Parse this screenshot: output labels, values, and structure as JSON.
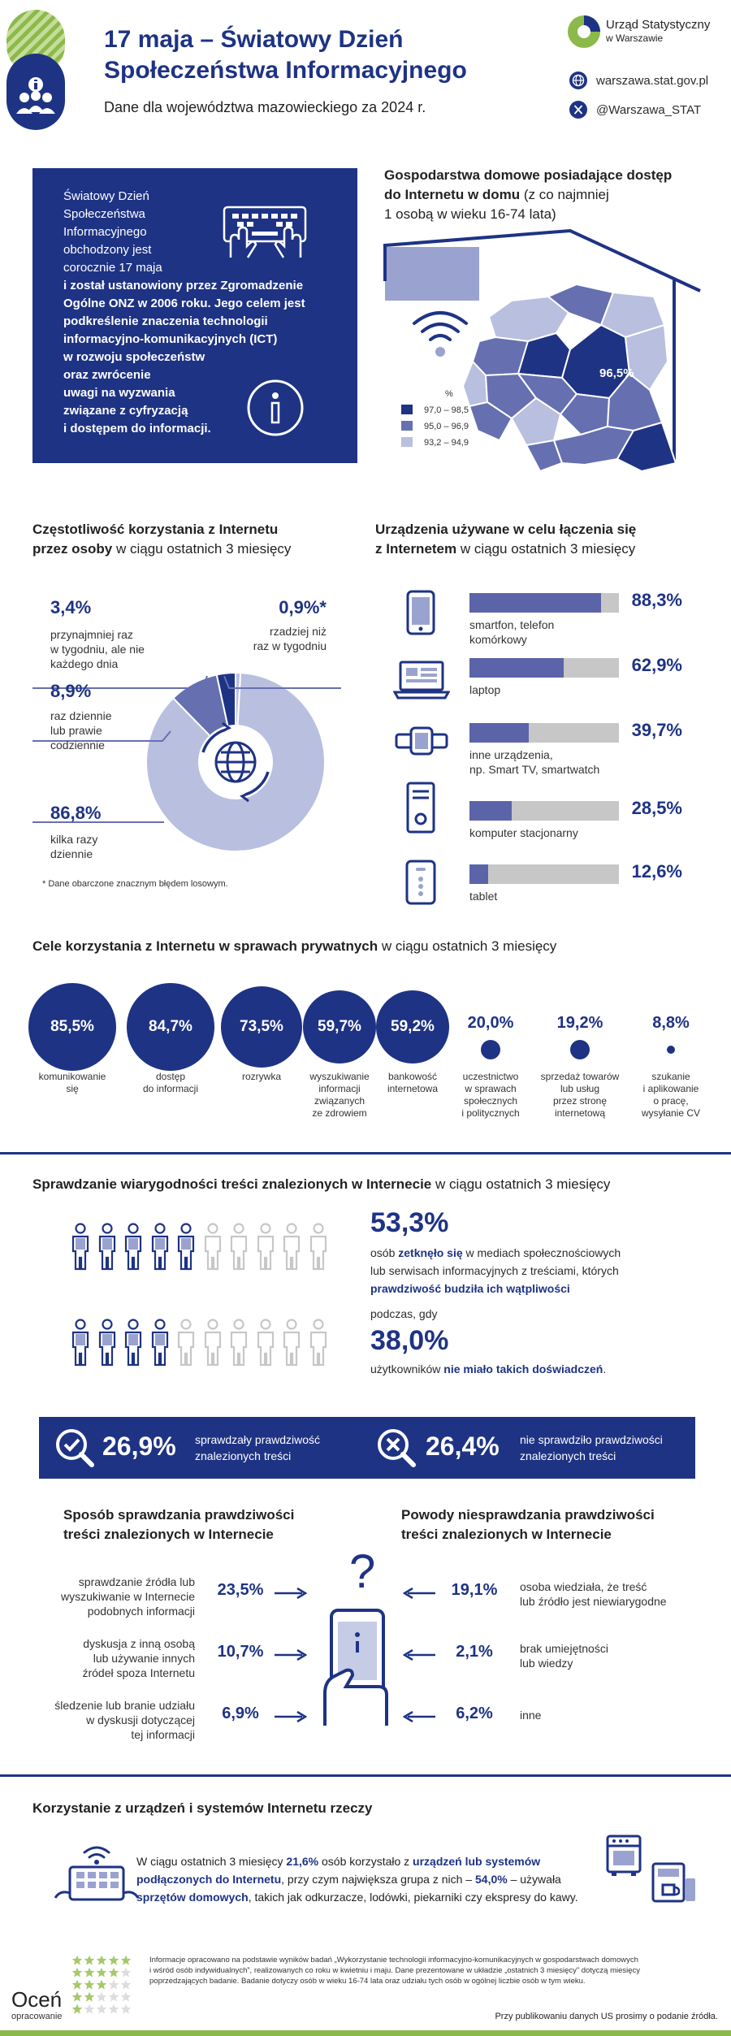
{
  "header": {
    "title_line1": "17 maja  – Światowy Dzień",
    "title_line2": "Społeczeństwa Informacyjnego",
    "subtitle": "Dane dla województwa mazowieckiego za 2024 r.",
    "logo_name_line1": "Urząd Statystyczny",
    "logo_name_line2": "w Warszawie",
    "website": "warszawa.stat.gov.pl",
    "twitter": "@Warszawa_STAT"
  },
  "intro": {
    "lines": [
      "Światowy Dzień",
      "Społeczeństwa",
      "Informacyjnego",
      "obchodzony jest",
      "corocznie 17 maja",
      "i został ustanowiony przez Zgromadzenie",
      "Ogólne ONZ w 2006 roku. Jego celem jest",
      "podkreślenie znaczenia technologii",
      "informacyjno-komunikacyjnych (ICT)",
      "w rozwoju społeczeństw",
      "oraz zwrócenie",
      "uwagi na wyzwania",
      "związane z cyfryzacją",
      "i dostępem do informacji."
    ]
  },
  "map_section": {
    "title_bold1": "Gospodarstwa domowe posiadające dostęp",
    "title_bold2": "do Internetu w domu",
    "title_thin2": " (z co najmniej",
    "title_thin3": "1 osobą w wieku 16-74 lata)",
    "region_value": "96,5%",
    "legend_unit": "%",
    "legend": [
      {
        "label": "97,0 – 98,5",
        "color": "#1e3384"
      },
      {
        "label": "95,0 – 96,9",
        "color": "#6670b0"
      },
      {
        "label": "93,2 – 94,9",
        "color": "#b9bfdf"
      }
    ]
  },
  "frequency": {
    "title_bold1": "Częstotliwość korzystania z Internetu",
    "title_bold2": "przez osoby",
    "title_thin2": "  w ciągu ostatnich 3 miesięcy",
    "footnote": "* Dane obarczone znacznym błędem losowym."
  },
  "chart_data": {
    "type": "pie",
    "categories": [
      "kilka razy dziennie",
      "raz dziennie lub prawie codziennie",
      "przynajmniej raz w tygodniu, ale nie każdego dnia",
      "rzadziej niż raz w tygodniu"
    ],
    "values": [
      86.8,
      8.9,
      3.4,
      0.9
    ],
    "value_labels": [
      "86,8%",
      "8,9%",
      "3,4%",
      "0,9%*"
    ],
    "label_texts": [
      [
        "kilka razy",
        "dziennie"
      ],
      [
        "raz dziennie",
        "lub prawie",
        "codziennie"
      ],
      [
        "przynajmniej raz",
        "w tygodniu, ale nie",
        "każdego dnia"
      ],
      [
        "rzadziej niż",
        "raz w tygodniu"
      ]
    ],
    "colors": [
      "#b9bfdf",
      "#6670b0",
      "#1e3384",
      "#b9bfdf"
    ]
  },
  "devices": {
    "title_bold1": "Urządzenia używane w celu łączenia się",
    "title_bold2": "z Internetem",
    "title_thin2": " w ciągu ostatnich 3 miesięcy",
    "items": [
      {
        "label1": "smartfon, telefon",
        "label2": "komórkowy",
        "value": 88.3,
        "value_label": "88,3%",
        "icon": "smartphone-icon"
      },
      {
        "label1": "laptop",
        "label2": "",
        "value": 62.9,
        "value_label": "62,9%",
        "icon": "laptop-icon"
      },
      {
        "label1": "inne urządzenia,",
        "label2": "np. Smart TV, smartwatch",
        "value": 39.7,
        "value_label": "39,7%",
        "icon": "smartwatch-icon"
      },
      {
        "label1": "komputer stacjonarny",
        "label2": "",
        "value": 28.5,
        "value_label": "28,5%",
        "icon": "desktop-computer-icon"
      },
      {
        "label1": "tablet",
        "label2": "",
        "value": 12.6,
        "value_label": "12,6%",
        "icon": "tablet-icon"
      }
    ]
  },
  "purposes": {
    "title_bold": "Cele korzystania z Internetu w sprawach prywatnych",
    "title_thin": " w ciągu ostatnich 3 miesięcy",
    "items": [
      {
        "value": 85.5,
        "value_label": "85,5%",
        "lines": [
          "komunikowanie",
          "się"
        ]
      },
      {
        "value": 84.7,
        "value_label": "84,7%",
        "lines": [
          "dostęp",
          "do informacji"
        ]
      },
      {
        "value": 73.5,
        "value_label": "73,5%",
        "lines": [
          "rozrywka"
        ]
      },
      {
        "value": 59.7,
        "value_label": "59,7%",
        "lines": [
          "wyszukiwanie",
          "informacji",
          "związanych",
          "ze zdrowiem"
        ]
      },
      {
        "value": 59.2,
        "value_label": "59,2%",
        "lines": [
          "bankowość",
          "internetowa"
        ]
      },
      {
        "value": 20.0,
        "value_label": "20,0%",
        "lines": [
          "uczestnictwo",
          "w sprawach",
          "społecznych",
          "i politycznych"
        ]
      },
      {
        "value": 19.2,
        "value_label": "19,2%",
        "lines": [
          "sprzedaż towarów",
          "lub usług",
          "przez stronę",
          "internetową"
        ]
      },
      {
        "value": 8.8,
        "value_label": "8,8%",
        "lines": [
          "szukanie",
          "i aplikowanie",
          "o pracę,",
          "wysyłanie CV"
        ]
      }
    ]
  },
  "credibility": {
    "title_bold": "Sprawdzanie wiarygodności treści znalezionych w Internecie",
    "title_thin": " w ciągu ostatnich 3 miesięcy",
    "pct1": "53,3%",
    "pct1_value": 53.3,
    "text1_a": "osób ",
    "text1_b": "zetknęło się",
    "text1_c": " w mediach społecznościowych",
    "text1_line2": "lub serwisach informacyjnych z treściami, których",
    "text1_line3": "prawdziwość budziła ich wątpliwości",
    "between": "podczas, gdy",
    "pct2": "38,0%",
    "pct2_value": 38.0,
    "text2_a": "użytkowników ",
    "text2_b": "nie miało takich doświadczeń",
    "text2_c": "."
  },
  "banner": {
    "verified_pct": "26,9%",
    "verified_text1": "sprawdzały prawdziwość",
    "verified_text2": "znalezionych treści",
    "notverified_pct": "26,4%",
    "notverified_text1": "nie sprawdziło prawdziwości",
    "notverified_text2": "znalezionych treści"
  },
  "methods": {
    "left_title1": "Sposób sprawdzania prawdziwości",
    "left_title2": "treści znalezionych w Internecie",
    "right_title1": "Powody niesprawdzania prawdziwości",
    "right_title2": "treści znalezionych w Internecie",
    "left": [
      {
        "pct": "23,5%",
        "lines": [
          "sprawdzanie źródła lub",
          "wyszukiwanie w Internecie",
          "podobnych informacji"
        ]
      },
      {
        "pct": "10,7%",
        "lines": [
          "dyskusja z inną osobą",
          "lub używanie innych",
          "źródeł spoza Internetu"
        ]
      },
      {
        "pct": "6,9%",
        "lines": [
          "śledzenie lub branie udziału",
          "w dyskusji dotyczącej",
          "tej informacji"
        ]
      }
    ],
    "right": [
      {
        "pct": "19,1%",
        "lines": [
          "osoba wiedziała, że treść",
          "lub źródło jest niewiarygodne"
        ]
      },
      {
        "pct": "2,1%",
        "lines": [
          "brak umiejętności",
          "lub wiedzy"
        ]
      },
      {
        "pct": "6,2%",
        "lines": [
          "inne"
        ]
      }
    ]
  },
  "iot": {
    "title": "Korzystanie z urządzeń i systemów Internetu rzeczy",
    "p1": "W ciągu ostatnich 3 miesięcy ",
    "p1_pct": "21,6%",
    "p1_b": " osób korzystało z ",
    "p1_bold": "urządzeń lub systemów",
    "p2_bold": "podłączonych do Internetu",
    "p2": ", przy czym największa grupa z nich –  ",
    "p2_pct": "54,0%",
    "p2_c": " – używała",
    "p3_bold": "sprzętów domowych",
    "p3": ", takich jak odkurzacze, lodówki, piekarniki czy ekspresy do kawy."
  },
  "footer": {
    "rate_word": "Oceń",
    "rate_sub": "opracowanie",
    "note1": "Informacje opracowano na podstawie wyników badań „Wykorzystanie technologii informacyjno-komunikacyjnych w gospodarstwach domowych",
    "note2": "i wśród osób indywidualnych”, realizowanych co roku w kwietniu i maju. Dane prezentowane w układzie „ostatnich 3 miesięcy” dotyczą miesięcy",
    "note3": "poprzedzających badanie. Badanie dotyczy osób w wieku 16-74 lata oraz udziału tych osób w ogólnej liczbie osób w tym wieku.",
    "publish": "Przy publikowaniu danych US prosimy o podanie źródła."
  }
}
